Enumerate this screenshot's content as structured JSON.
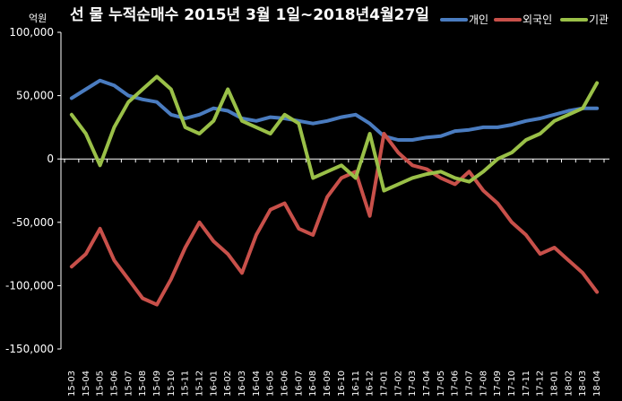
{
  "chart_data": {
    "type": "line",
    "title": "선 물 누적순매수 2015년 3월 1일~2018년4월27일",
    "unit_label": "억원",
    "ylim": [
      -150000,
      100000
    ],
    "yticks": [
      100000,
      50000,
      0,
      -50000,
      -100000,
      -150000
    ],
    "ytick_labels": [
      "100,000",
      "50,000",
      "0",
      "-50,000",
      "-100,000",
      "-150,000"
    ],
    "grid": false,
    "legend_position": "top-right",
    "x": [
      "15-03",
      "15-04",
      "15-05",
      "15-06",
      "15-07",
      "15-08",
      "15-09",
      "15-10",
      "15-11",
      "15-12",
      "16-01",
      "16-02",
      "16-03",
      "16-04",
      "16-05",
      "16-06",
      "16-07",
      "16-08",
      "16-09",
      "16-10",
      "16-11",
      "16-12",
      "17-01",
      "17-02",
      "17-03",
      "17-04",
      "17-05",
      "17-06",
      "17-07",
      "17-08",
      "17-09",
      "17-10",
      "17-11",
      "17-12",
      "18-01",
      "18-02",
      "18-03",
      "18-04"
    ],
    "series": [
      {
        "name": "개인",
        "color": "#4a7cc0",
        "values": [
          48000,
          55000,
          62000,
          58000,
          50000,
          47000,
          45000,
          35000,
          32000,
          35000,
          40000,
          38000,
          32000,
          30000,
          33000,
          32000,
          30000,
          28000,
          30000,
          33000,
          35000,
          28000,
          18000,
          15000,
          15000,
          17000,
          18000,
          22000,
          23000,
          25000,
          25000,
          27000,
          30000,
          32000,
          35000,
          38000,
          40000,
          40000
        ]
      },
      {
        "name": "외국인",
        "color": "#c8504a",
        "values": [
          -85000,
          -75000,
          -55000,
          -80000,
          -95000,
          -110000,
          -115000,
          -95000,
          -70000,
          -50000,
          -65000,
          -75000,
          -90000,
          -60000,
          -40000,
          -35000,
          -55000,
          -60000,
          -30000,
          -15000,
          -10000,
          -45000,
          20000,
          5000,
          -5000,
          -8000,
          -15000,
          -20000,
          -10000,
          -25000,
          -35000,
          -50000,
          -60000,
          -75000,
          -70000,
          -80000,
          -90000,
          -105000
        ]
      },
      {
        "name": "기관",
        "color": "#9ac048",
        "values": [
          35000,
          20000,
          -5000,
          25000,
          45000,
          55000,
          65000,
          55000,
          25000,
          20000,
          30000,
          55000,
          30000,
          25000,
          20000,
          35000,
          28000,
          -15000,
          -10000,
          -5000,
          -15000,
          20000,
          -25000,
          -20000,
          -15000,
          -12000,
          -10000,
          -15000,
          -18000,
          -10000,
          0,
          5000,
          15000,
          20000,
          30000,
          35000,
          40000,
          60000
        ]
      }
    ]
  }
}
